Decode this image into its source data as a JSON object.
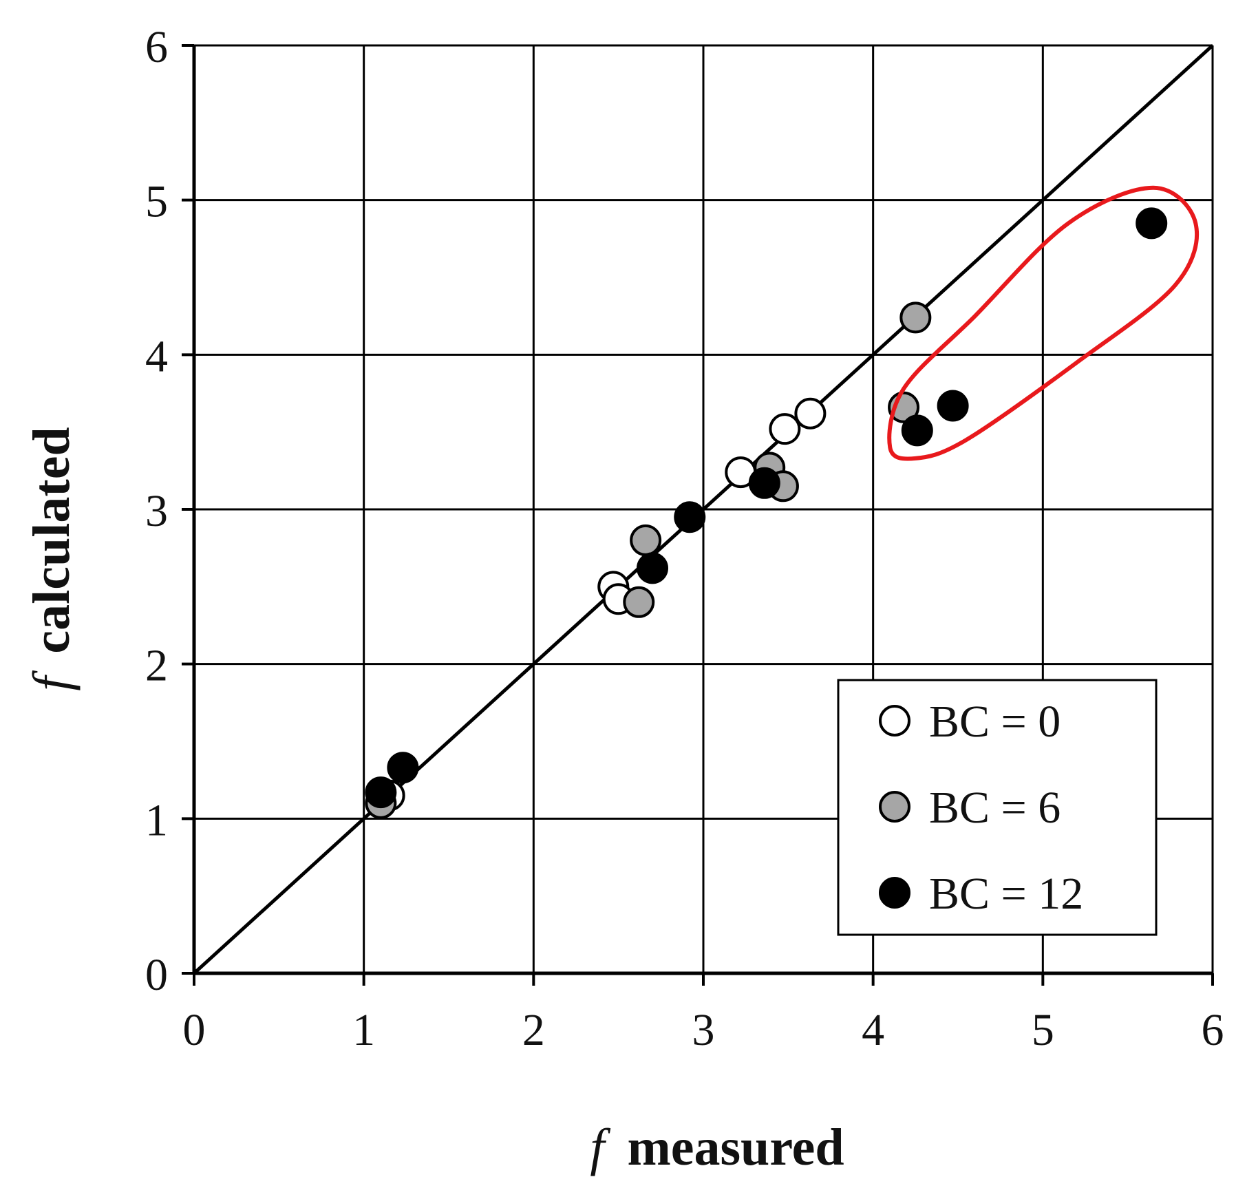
{
  "chart_data": {
    "type": "scatter",
    "title": "",
    "xlabel": {
      "italic": "f",
      "rest": "measured"
    },
    "ylabel": {
      "italic": "f",
      "rest": "calculated"
    },
    "xlim": [
      0,
      6
    ],
    "ylim": [
      0,
      6
    ],
    "xticks": [
      "0",
      "1",
      "2",
      "3",
      "4",
      "5",
      "6"
    ],
    "yticks": [
      "0",
      "1",
      "2",
      "3",
      "4",
      "5",
      "6"
    ],
    "grid": true,
    "legend_position": "lower-right",
    "reference_line": {
      "label": "1:1 line",
      "x": [
        0,
        6
      ],
      "y": [
        0,
        6
      ]
    },
    "series": [
      {
        "name": "BC = 0",
        "fill": "#ffffff",
        "points": [
          [
            1.15,
            1.15
          ],
          [
            2.47,
            2.5
          ],
          [
            2.5,
            2.42
          ],
          [
            3.22,
            3.24
          ],
          [
            3.48,
            3.52
          ],
          [
            3.63,
            3.62
          ]
        ]
      },
      {
        "name": "BC = 6",
        "fill": "#a6a6a6",
        "points": [
          [
            1.1,
            1.1
          ],
          [
            2.62,
            2.4
          ],
          [
            2.66,
            2.8
          ],
          [
            3.39,
            3.27
          ],
          [
            3.47,
            3.15
          ],
          [
            4.18,
            3.66
          ],
          [
            4.25,
            4.24
          ]
        ]
      },
      {
        "name": "BC = 12",
        "fill": "#000000",
        "points": [
          [
            1.1,
            1.17
          ],
          [
            1.23,
            1.33
          ],
          [
            2.7,
            2.62
          ],
          [
            2.92,
            2.95
          ],
          [
            3.36,
            3.17
          ],
          [
            4.26,
            3.51
          ],
          [
            4.47,
            3.67
          ],
          [
            5.64,
            4.85
          ]
        ]
      }
    ],
    "highlight": {
      "shape": "closed outline",
      "color": "#e8191c"
    }
  }
}
